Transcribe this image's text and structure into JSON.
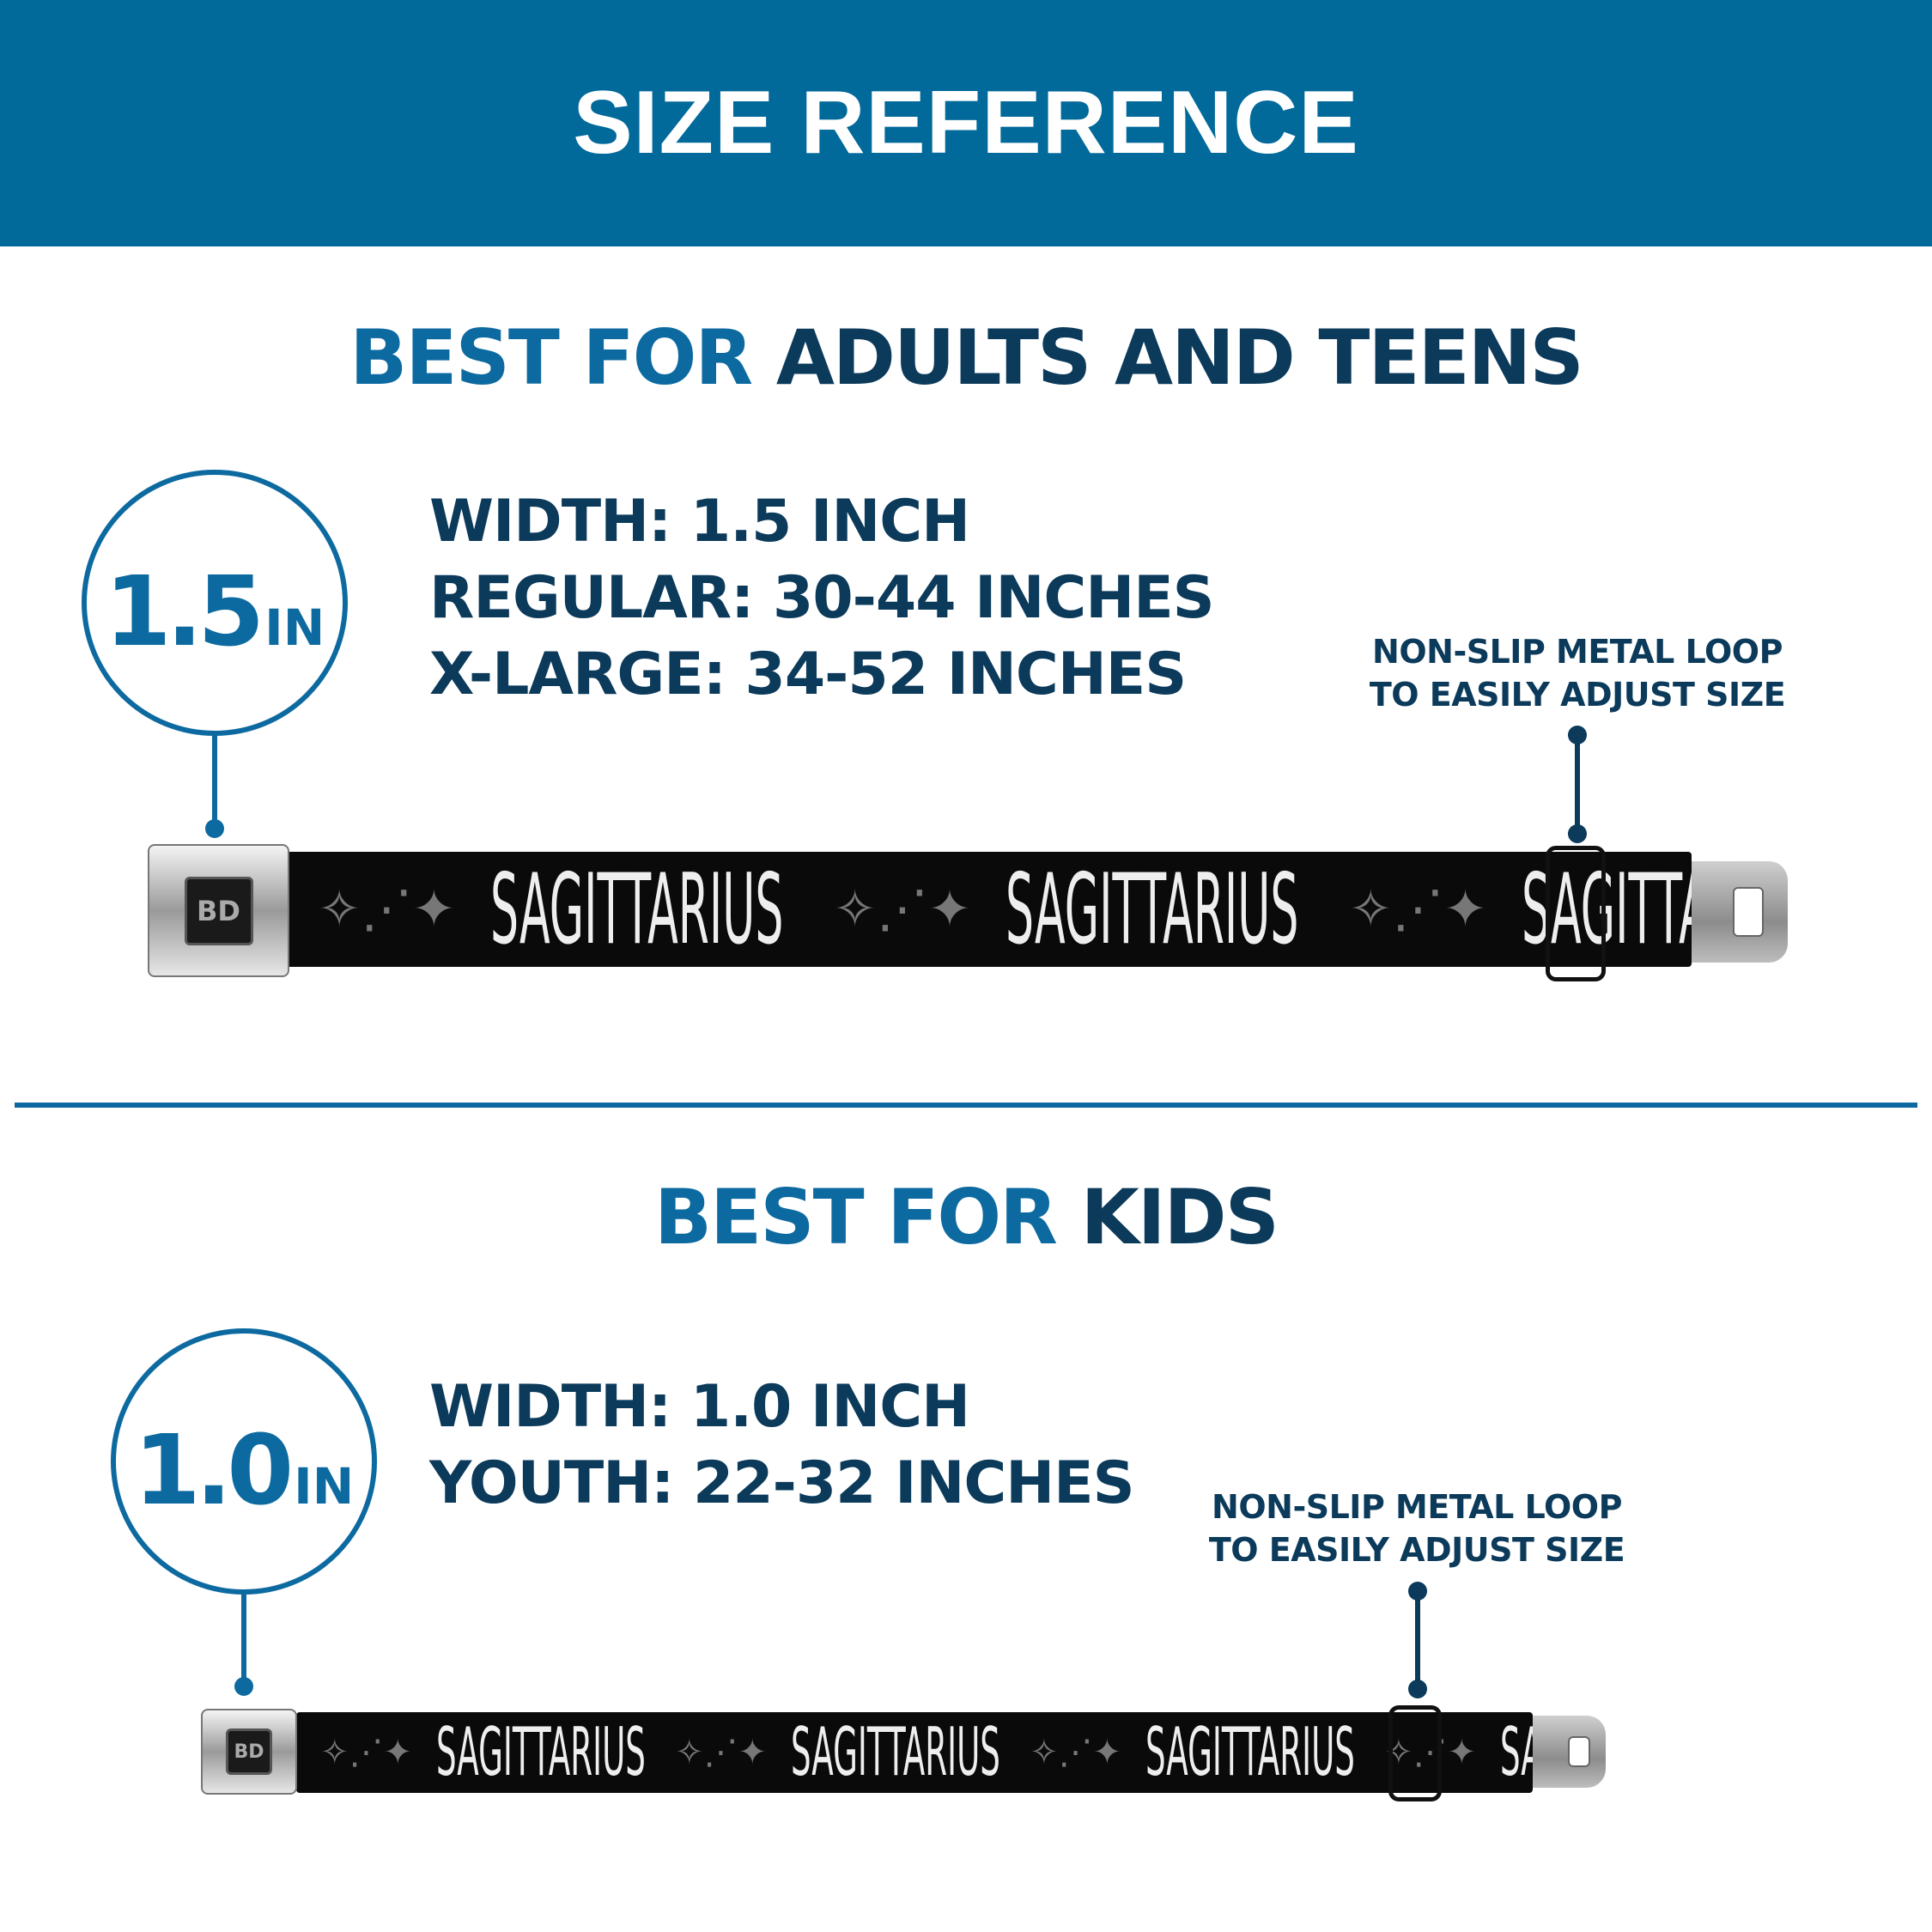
{
  "header": {
    "title": "SIZE REFERENCE"
  },
  "colors": {
    "header_bg": "#02699b",
    "accent_blue": "#0d6aa0",
    "navy_text": "#0b3a5b",
    "strap": "#0a0a0a"
  },
  "adults": {
    "title_lead": "BEST FOR",
    "title_rest": "ADULTS AND TEENS",
    "badge_number": "1.5",
    "badge_unit": "IN",
    "specs": [
      "WIDTH: 1.5 INCH",
      "REGULAR: 30-44 INCHES",
      "X-LARGE: 34-52 INCHES"
    ],
    "note": [
      "NON-SLIP METAL LOOP",
      "TO EASILY ADJUST SIZE"
    ],
    "strap_text": "SAGITTARIUS",
    "buckle_logo": "BD"
  },
  "kids": {
    "title_lead": "BEST FOR",
    "title_rest": "KIDS",
    "badge_number": "1.0",
    "badge_unit": "IN",
    "specs": [
      "WIDTH: 1.0 INCH",
      "YOUTH: 22-32 INCHES"
    ],
    "note": [
      "NON-SLIP METAL LOOP",
      "TO EASILY ADJUST SIZE"
    ],
    "strap_text": "SAGITTARIUS",
    "buckle_logo": "BD"
  }
}
